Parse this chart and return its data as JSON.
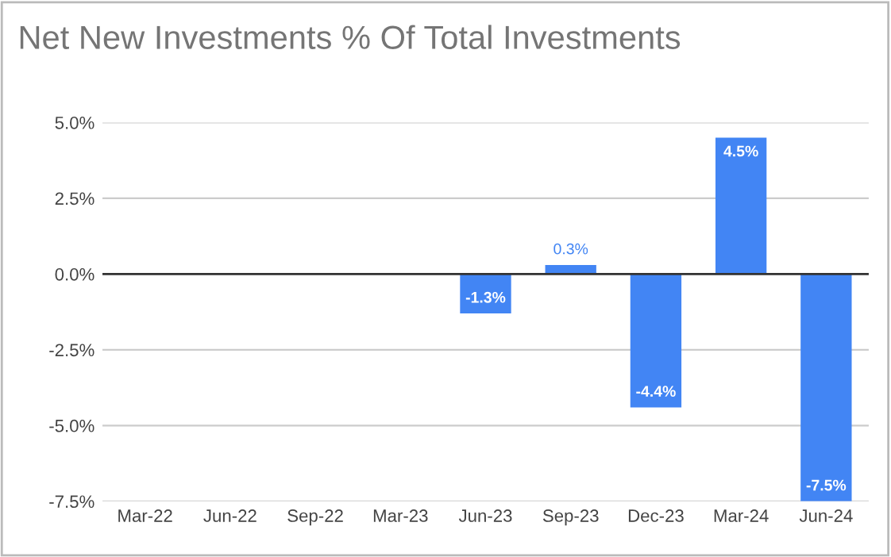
{
  "chart_data": {
    "type": "bar",
    "title": "Net New Investments % Of Total Investments",
    "categories": [
      "Mar-22",
      "Jun-22",
      "Sep-22",
      "Mar-23",
      "Jun-23",
      "Sep-23",
      "Dec-23",
      "Mar-24",
      "Jun-24"
    ],
    "values": [
      null,
      null,
      null,
      null,
      -1.3,
      0.3,
      -4.4,
      4.5,
      -7.5
    ],
    "value_labels": [
      null,
      null,
      null,
      null,
      "-1.3%",
      "0.3%",
      "-4.4%",
      "4.5%",
      "-7.5%"
    ],
    "color": "#4285f4",
    "ylim": [
      -7.5,
      5.0
    ],
    "yticks": [
      {
        "value": -7.5,
        "label": "-7.5%"
      },
      {
        "value": -5.0,
        "label": "-5.0%"
      },
      {
        "value": -2.5,
        "label": "-2.5%"
      },
      {
        "value": 0,
        "label": "0.0%"
      },
      {
        "value": 2.5,
        "label": "2.5%"
      },
      {
        "value": 5.0,
        "label": "5.0%"
      }
    ],
    "grid": "y",
    "legend": false
  }
}
